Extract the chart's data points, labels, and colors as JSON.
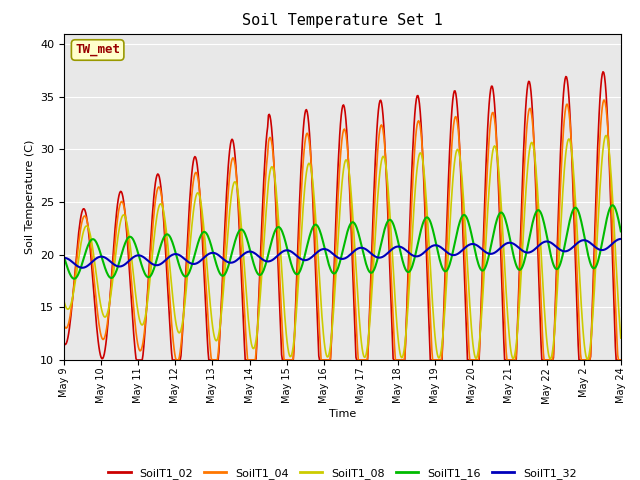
{
  "title": "Soil Temperature Set 1",
  "xlabel": "Time",
  "ylabel": "Soil Temperature (C)",
  "ylim": [
    10,
    41
  ],
  "background_color": "#e8e8e8",
  "fig_bg": "#ffffff",
  "annotation_text": "TW_met",
  "annotation_color": "#990000",
  "annotation_bg": "#ffffcc",
  "annotation_border": "#999900",
  "series": {
    "SoilT1_02": {
      "color": "#cc0000",
      "lw": 1.2
    },
    "SoilT1_04": {
      "color": "#ff7700",
      "lw": 1.2
    },
    "SoilT1_08": {
      "color": "#cccc00",
      "lw": 1.2
    },
    "SoilT1_16": {
      "color": "#00bb00",
      "lw": 1.5
    },
    "SoilT1_32": {
      "color": "#0000bb",
      "lw": 1.5
    }
  },
  "tick_labels": [
    "May 9",
    "May 10",
    "May 11",
    "May 12",
    "May 13",
    "May 14",
    "May 15",
    "May 16",
    "May 17",
    "May 18",
    "May 19",
    "May 20",
    "May 21",
    "May 22",
    "May 2",
    "May 24"
  ],
  "yticks": [
    10,
    15,
    20,
    25,
    30,
    35,
    40
  ]
}
